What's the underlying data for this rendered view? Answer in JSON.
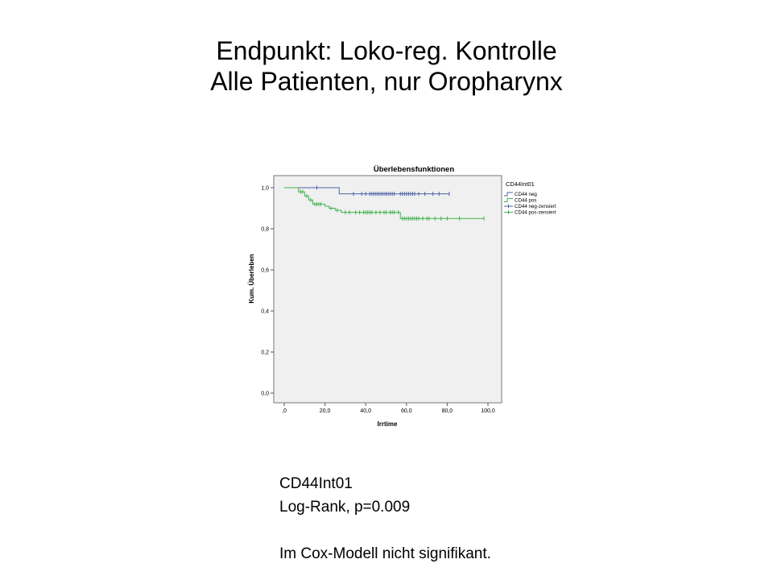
{
  "slide": {
    "title_line1": "Endpunkt: Loko-reg. Kontrolle",
    "title_line2": "Alle Patienten, nur Oropharynx"
  },
  "notes": {
    "line1": "CD44Int01",
    "line2": "Log-Rank, p=0.009",
    "line3": "Im Cox-Modell nicht signifikant."
  },
  "chart_data": {
    "type": "line",
    "subtype": "kaplan-meier",
    "title": "Überlebensfunktionen",
    "xlabel": "Irrtime",
    "ylabel": "Kum. Überleben",
    "xlim": [
      0,
      105
    ],
    "ylim": [
      0,
      1.05
    ],
    "x_ticks": [
      0,
      20,
      40,
      60,
      80,
      100
    ],
    "x_tick_labels": [
      ",0",
      "20,0",
      "40,0",
      "60,0",
      "80,0",
      "100,0"
    ],
    "y_ticks": [
      0,
      0.2,
      0.4,
      0.6,
      0.8,
      1.0
    ],
    "y_tick_labels": [
      "0,0",
      "0,2",
      "0,4",
      "0,6",
      "0,8",
      "1,0"
    ],
    "legend_title": "CD44Int01",
    "legend": [
      "CD44 neg",
      "CD44 pos",
      "CD44 neg-zensiert",
      "CD44 pos-zensiert"
    ],
    "series": [
      {
        "name": "CD44 neg",
        "color": "#4a62a8",
        "steps": [
          [
            0,
            1.0
          ],
          [
            27,
            0.97
          ],
          [
            81,
            0.97
          ]
        ],
        "censored": [
          [
            16,
            1.0
          ],
          [
            34,
            0.97
          ],
          [
            38,
            0.97
          ],
          [
            40,
            0.97
          ],
          [
            42,
            0.97
          ],
          [
            43,
            0.97
          ],
          [
            44,
            0.97
          ],
          [
            45,
            0.97
          ],
          [
            46,
            0.97
          ],
          [
            47,
            0.97
          ],
          [
            48,
            0.97
          ],
          [
            49,
            0.97
          ],
          [
            50,
            0.97
          ],
          [
            51,
            0.97
          ],
          [
            52,
            0.97
          ],
          [
            53,
            0.97
          ],
          [
            54,
            0.97
          ],
          [
            57,
            0.97
          ],
          [
            58,
            0.97
          ],
          [
            59,
            0.97
          ],
          [
            60,
            0.97
          ],
          [
            61,
            0.97
          ],
          [
            62,
            0.97
          ],
          [
            63,
            0.97
          ],
          [
            64,
            0.97
          ],
          [
            66,
            0.97
          ],
          [
            69,
            0.97
          ],
          [
            73,
            0.97
          ],
          [
            76,
            0.97
          ],
          [
            81,
            0.97
          ]
        ]
      },
      {
        "name": "CD44 pos",
        "color": "#3fb24a",
        "steps": [
          [
            0,
            1.0
          ],
          [
            7,
            0.98
          ],
          [
            10,
            0.96
          ],
          [
            12,
            0.94
          ],
          [
            14,
            0.92
          ],
          [
            20,
            0.91
          ],
          [
            22,
            0.9
          ],
          [
            25,
            0.89
          ],
          [
            28,
            0.88
          ],
          [
            57,
            0.85
          ],
          [
            98,
            0.85
          ]
        ],
        "censored": [
          [
            8,
            0.98
          ],
          [
            9,
            0.98
          ],
          [
            11,
            0.96
          ],
          [
            13,
            0.94
          ],
          [
            15,
            0.92
          ],
          [
            16,
            0.92
          ],
          [
            17,
            0.92
          ],
          [
            18,
            0.92
          ],
          [
            23,
            0.9
          ],
          [
            26,
            0.89
          ],
          [
            30,
            0.88
          ],
          [
            32,
            0.88
          ],
          [
            35,
            0.88
          ],
          [
            37,
            0.88
          ],
          [
            39,
            0.88
          ],
          [
            40,
            0.88
          ],
          [
            41,
            0.88
          ],
          [
            42,
            0.88
          ],
          [
            43,
            0.88
          ],
          [
            45,
            0.88
          ],
          [
            47,
            0.88
          ],
          [
            49,
            0.88
          ],
          [
            50,
            0.88
          ],
          [
            52,
            0.88
          ],
          [
            53,
            0.88
          ],
          [
            54,
            0.88
          ],
          [
            56,
            0.88
          ],
          [
            58,
            0.85
          ],
          [
            59,
            0.85
          ],
          [
            60,
            0.85
          ],
          [
            61,
            0.85
          ],
          [
            62,
            0.85
          ],
          [
            63,
            0.85
          ],
          [
            64,
            0.85
          ],
          [
            65,
            0.85
          ],
          [
            66,
            0.85
          ],
          [
            68,
            0.85
          ],
          [
            70,
            0.85
          ],
          [
            71,
            0.85
          ],
          [
            74,
            0.85
          ],
          [
            77,
            0.85
          ],
          [
            80,
            0.85
          ],
          [
            86,
            0.85
          ],
          [
            98,
            0.85
          ]
        ]
      }
    ]
  }
}
